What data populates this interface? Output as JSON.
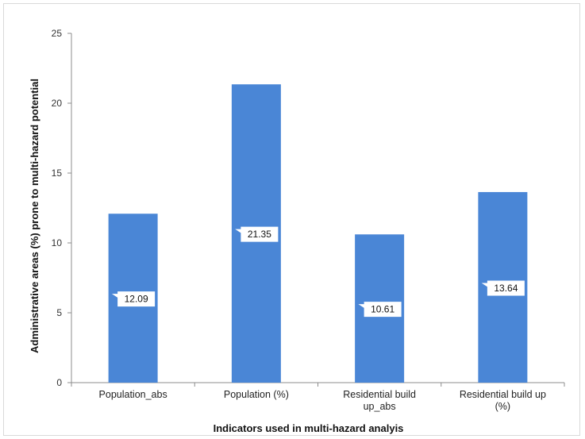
{
  "chart_data": {
    "type": "bar",
    "categories": [
      [
        "Population_abs"
      ],
      [
        "Population (%)"
      ],
      [
        "Residential build",
        "up_abs"
      ],
      [
        "Residential build up",
        "(%)"
      ]
    ],
    "values": [
      12.09,
      21.35,
      10.61,
      13.64
    ],
    "data_labels": [
      "12.09",
      "21.35",
      "10.61",
      "13.64"
    ],
    "title": "",
    "xlabel": "Indicators used in multi-hazard analyis",
    "ylabel": "Administrative areas (%) prone to multi-hazard  potential",
    "ylim": [
      0,
      25
    ],
    "yticks": [
      0,
      5,
      10,
      15,
      20,
      25
    ],
    "grid": false,
    "legend": "none",
    "bar_color": "#4a86d6"
  }
}
